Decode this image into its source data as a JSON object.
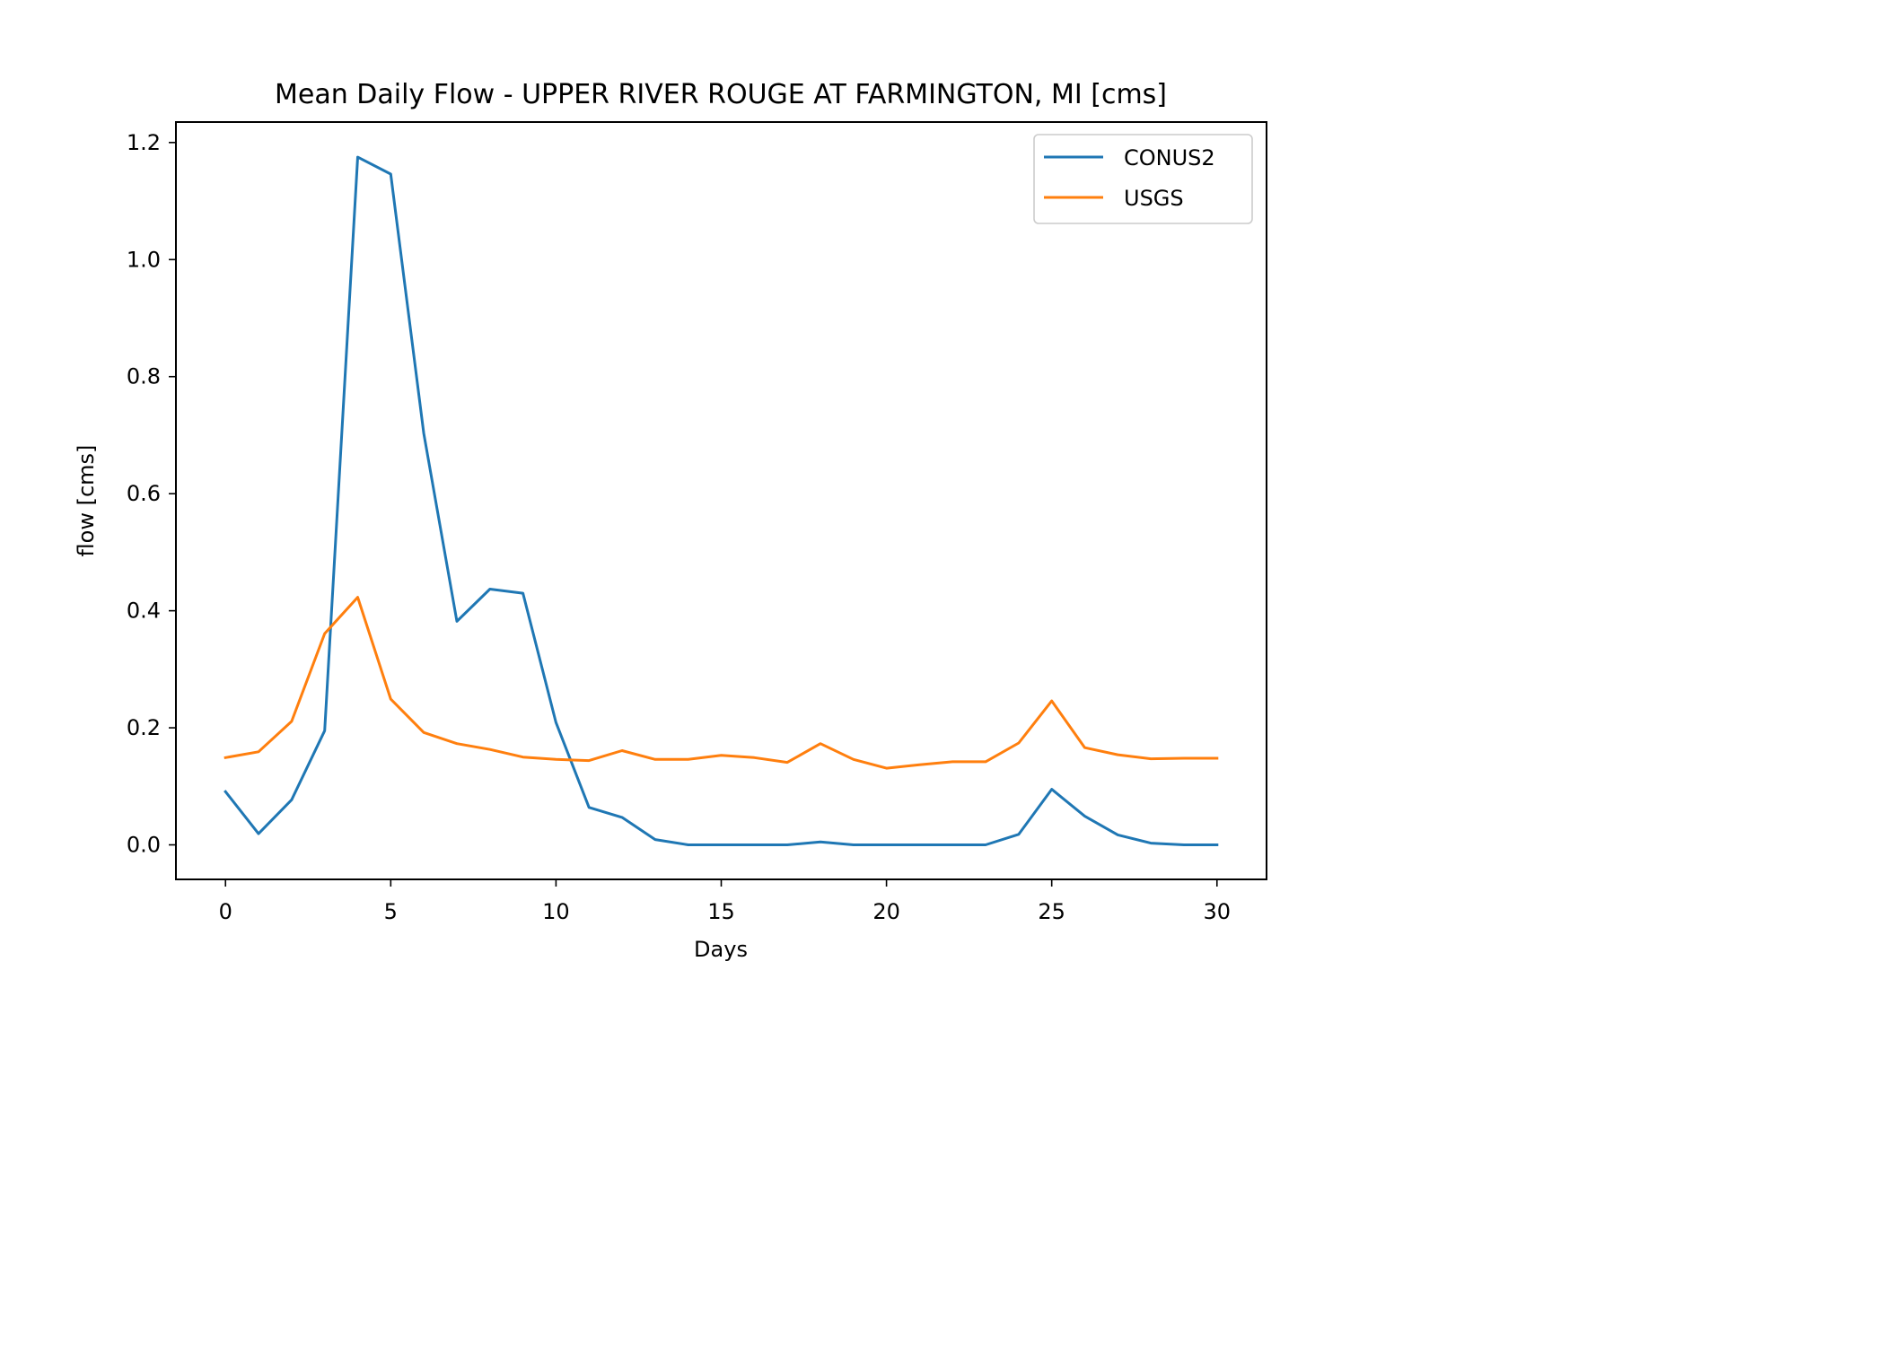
{
  "chart_data": {
    "type": "line",
    "title": "Mean Daily Flow - UPPER RIVER ROUGE AT FARMINGTON, MI [cms]",
    "xlabel": "Days",
    "ylabel": "flow [cms]",
    "xlim": [
      -1.5,
      31.5
    ],
    "ylim": [
      -0.059,
      1.235
    ],
    "xticks": [
      0,
      5,
      10,
      15,
      20,
      25,
      30
    ],
    "yticks": [
      0.0,
      0.2,
      0.4,
      0.6,
      0.8,
      1.0,
      1.2
    ],
    "ytick_labels": [
      "0.0",
      "0.2",
      "0.4",
      "0.6",
      "0.8",
      "1.0",
      "1.2"
    ],
    "grid": false,
    "legend_position": "top-right",
    "x": [
      0,
      1,
      2,
      3,
      4,
      5,
      6,
      7,
      8,
      9,
      10,
      11,
      12,
      13,
      14,
      15,
      16,
      17,
      18,
      19,
      20,
      21,
      22,
      23,
      24,
      25,
      26,
      27,
      28,
      29,
      30
    ],
    "series": [
      {
        "name": "CONUS2",
        "color": "#1f77b4",
        "values": [
          0.091,
          0.019,
          0.077,
          0.195,
          1.175,
          1.146,
          0.703,
          0.382,
          0.437,
          0.43,
          0.209,
          0.064,
          0.047,
          0.009,
          0.0,
          0.0,
          0.0,
          0.0,
          0.005,
          0.0,
          0.0,
          0.0,
          0.0,
          0.0,
          0.018,
          0.095,
          0.049,
          0.017,
          0.003,
          0.0,
          0.0
        ]
      },
      {
        "name": "USGS",
        "color": "#ff7f0e",
        "values": [
          0.149,
          0.159,
          0.211,
          0.361,
          0.423,
          0.249,
          0.192,
          0.173,
          0.163,
          0.15,
          0.146,
          0.144,
          0.161,
          0.146,
          0.146,
          0.153,
          0.149,
          0.141,
          0.173,
          0.146,
          0.131,
          0.137,
          0.142,
          0.142,
          0.174,
          0.246,
          0.166,
          0.154,
          0.147,
          0.148,
          0.148
        ]
      }
    ]
  }
}
